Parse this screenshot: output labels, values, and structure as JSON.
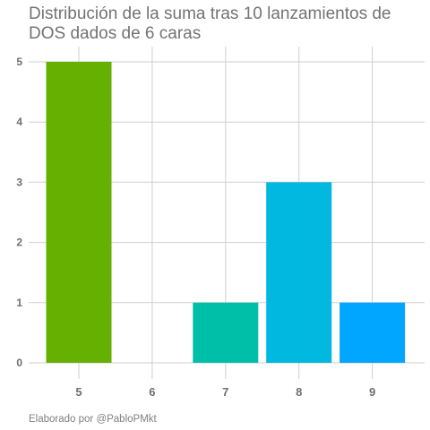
{
  "chart_data": {
    "type": "bar",
    "title": "Distribución de la suma tras 10 lanzamientos de DOS dados de 6 caras",
    "xlabel": "",
    "ylabel": "",
    "categories": [
      "5",
      "6",
      "7",
      "8",
      "9"
    ],
    "values": [
      5,
      0,
      1,
      3,
      1
    ],
    "colors": [
      "#65b000",
      "#00b8a0",
      "#00bfa9",
      "#00b8e0",
      "#00a6ff"
    ],
    "ylim": [
      0,
      5.5
    ],
    "yticks": [
      0,
      1,
      2,
      3,
      4,
      5
    ],
    "grid": true,
    "legend": "none",
    "caption": "Elaborado por @PabloPMkt"
  }
}
